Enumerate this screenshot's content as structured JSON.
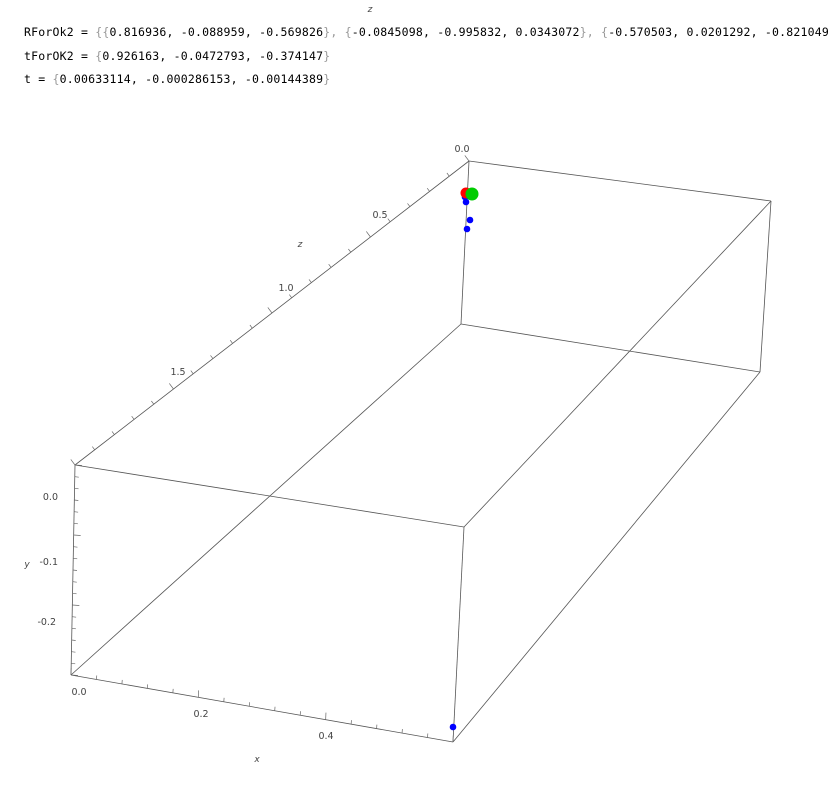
{
  "output": {
    "line1": {
      "name": "RForOk2",
      "op": " = ",
      "open": "{{",
      "r1": "0.816936, -0.088959, -0.569826",
      "sep": "}, {",
      "r2": "-0.0845098, -0.995832, 0.0343072",
      "r3": "-0.570503, 0.0201292, -0.821049",
      "close": "}}"
    },
    "line2": {
      "name": "tForOK2",
      "op": " = ",
      "open": "{",
      "vals": "0.926163, -0.0472793, -0.374147",
      "close": "}"
    },
    "line3": {
      "name": "t",
      "op": " = ",
      "open": "{",
      "vals": "0.00633114, -0.000286153, -0.00144389",
      "close": "}"
    }
  },
  "chart_data": {
    "type": "scatter3d",
    "axes": {
      "x": {
        "label": "x",
        "ticks": [
          "0.0",
          "0.2",
          "0.4"
        ],
        "range": [
          0,
          0.55
        ]
      },
      "y": {
        "label": "y",
        "ticks": [
          "0.0",
          "-0.1",
          "-0.2"
        ],
        "range": [
          -0.28,
          0.05
        ]
      },
      "z": {
        "label": "z",
        "ticks": [
          "0.0",
          "0.5",
          "1.0",
          "1.5"
        ],
        "range": [
          0,
          2.0
        ]
      },
      "z_top_label": "z"
    },
    "box": true,
    "series": [
      {
        "color": "#0000ff",
        "points": [
          [
            0.005,
            -0.005,
            0.25
          ],
          [
            0.01,
            -0.01,
            0.26
          ],
          [
            0.03,
            -0.02,
            0.33
          ],
          [
            0.02,
            -0.03,
            0.38
          ],
          [
            0.45,
            -0.27,
            0.0
          ]
        ]
      },
      {
        "color": "#ff0000",
        "points": [
          [
            0.0,
            0.0,
            0.23
          ]
        ]
      },
      {
        "color": "#00cc00",
        "points": [
          [
            0.04,
            0.005,
            0.23
          ]
        ]
      }
    ],
    "colors": {
      "blue": "#0000ff",
      "red": "#ff0000",
      "green": "#00cc00",
      "box": "#555555"
    }
  }
}
